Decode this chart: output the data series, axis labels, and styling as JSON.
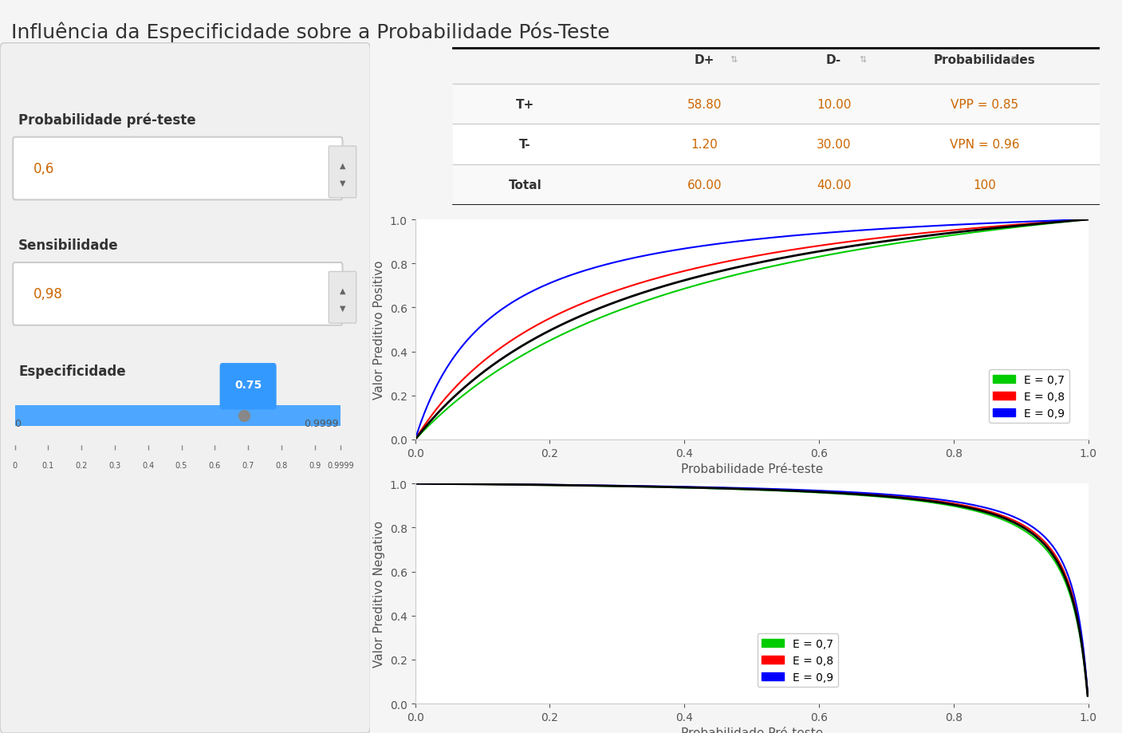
{
  "title": "Influência da Especificidade sobre a Probabilidade Pós-Teste",
  "title_fontsize": 18,
  "background_color": "#f5f5f5",
  "panel_bg": "#f0f0f0",
  "plot_bg": "#ffffff",
  "prob_pre_teste_label": "Probabilidade pré-teste",
  "prob_pre_teste_value": "0,6",
  "sensibilidade_label": "Sensibilidade",
  "sensibilidade_value": "0,98",
  "especificidade_label": "Especificidade",
  "especificidade_value": "0.75",
  "slider_min": "0",
  "slider_max": "0.9999",
  "slider_ticks": [
    "0",
    "0.1",
    "0.2",
    "0.3",
    "0.4",
    "0.5",
    "0.6",
    "0.7",
    "0.8",
    "0.9",
    "0.9999"
  ],
  "table_headers": [
    "",
    "D+",
    "↕",
    "D-",
    "↕",
    "Probabilidades",
    "↕"
  ],
  "table_rows": [
    [
      "T+",
      "58.80",
      "10.00",
      "VPP = 0.85"
    ],
    [
      "T-",
      "1.20",
      "30.00",
      "VPN = 0.96"
    ],
    [
      "Total",
      "60.00",
      "40.00",
      "100"
    ]
  ],
  "sensibilidade": 0.98,
  "especificidades": [
    0.7,
    0.8,
    0.9
  ],
  "colors": [
    "#00cc00",
    "#ff0000",
    "#0000ff"
  ],
  "black_color": "#000000",
  "current_especificidade": 0.75,
  "legend_labels": [
    "E = 0,7",
    "E = 0,8",
    "E = 0,9"
  ],
  "vpp_ylabel": "Valor Preditivo Positivo",
  "vpn_ylabel": "Valor Preditivo Negativo",
  "xlabel": "Probabilidade Pré-teste",
  "axis_ticks": [
    0.0,
    0.2,
    0.4,
    0.6,
    0.8,
    1.0
  ]
}
